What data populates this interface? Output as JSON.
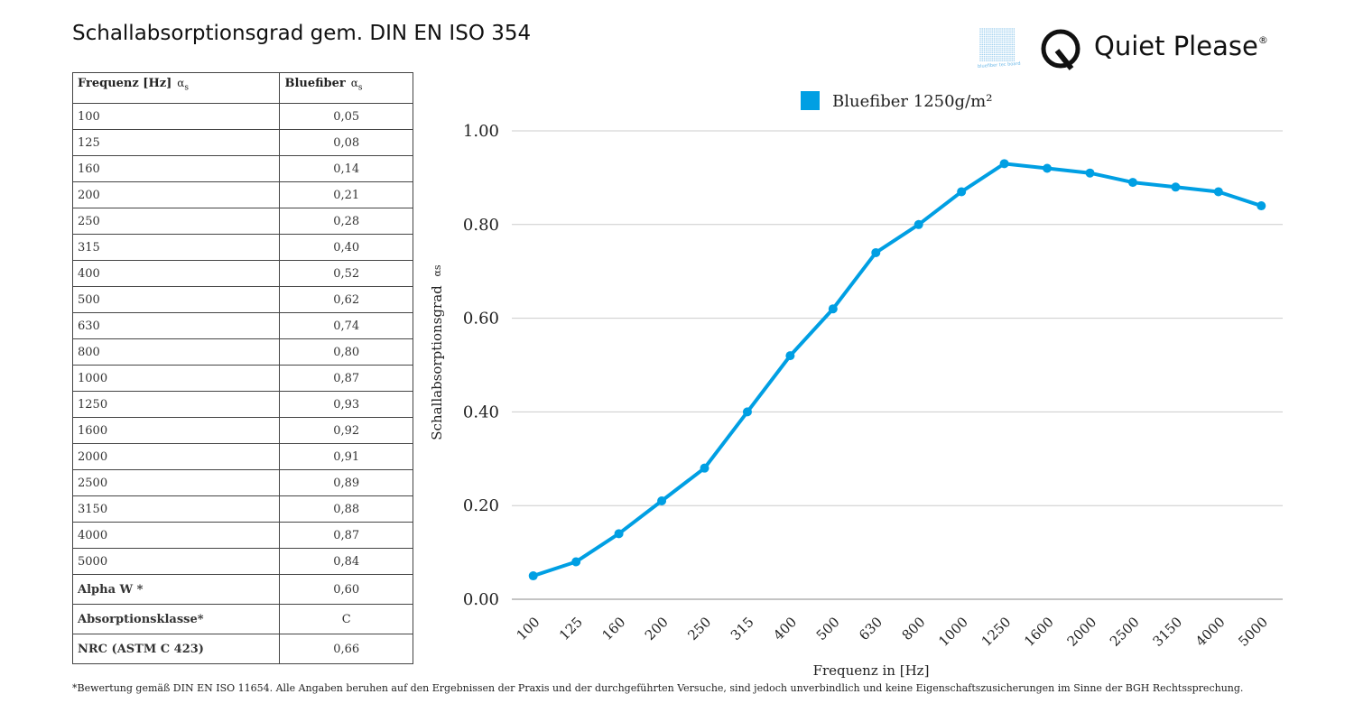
{
  "title": "Schallabsorptionsgrad gem. DIN EN ISO 354",
  "brand": {
    "name": "Quiet Please",
    "mark": "®",
    "sub_logo_text": "bluefiber tec board"
  },
  "table": {
    "headers": {
      "col1": "Frequenz [Hz]",
      "col2": "Bluefiber",
      "alpha": "α",
      "alpha_sub": "s"
    },
    "rows": [
      [
        "100",
        "0,05"
      ],
      [
        "125",
        "0,08"
      ],
      [
        "160",
        "0,14"
      ],
      [
        "200",
        "0,21"
      ],
      [
        "250",
        "0,28"
      ],
      [
        "315",
        "0,40"
      ],
      [
        "400",
        "0,52"
      ],
      [
        "500",
        "0,62"
      ],
      [
        "630",
        "0,74"
      ],
      [
        "800",
        "0,80"
      ],
      [
        "1000",
        "0,87"
      ],
      [
        "1250",
        "0,93"
      ],
      [
        "1600",
        "0,92"
      ],
      [
        "2000",
        "0,91"
      ],
      [
        "2500",
        "0,89"
      ],
      [
        "3150",
        "0,88"
      ],
      [
        "4000",
        "0,87"
      ],
      [
        "5000",
        "0,84"
      ]
    ],
    "extra_rows": [
      [
        "Alpha W *",
        "0,60"
      ],
      [
        "Absorptionsklasse*",
        "C"
      ],
      [
        "NRC (ASTM C 423)",
        "0,66"
      ]
    ]
  },
  "chart_data": {
    "type": "line",
    "categories": [
      "100",
      "125",
      "160",
      "200",
      "250",
      "315",
      "400",
      "500",
      "630",
      "800",
      "1000",
      "1250",
      "1600",
      "2000",
      "2500",
      "3150",
      "4000",
      "5000"
    ],
    "series": [
      {
        "name": "Bluefiber 1250g/m²",
        "color": "#009fe3",
        "values": [
          0.05,
          0.08,
          0.14,
          0.21,
          0.28,
          0.4,
          0.52,
          0.62,
          0.74,
          0.8,
          0.87,
          0.93,
          0.92,
          0.91,
          0.89,
          0.88,
          0.87,
          0.84
        ]
      }
    ],
    "xlabel": "Frequenz in [Hz]",
    "ylabel": "Schallabsorptionsgrad",
    "ylabel_symbol": "αs",
    "ylim": [
      0,
      1
    ],
    "yticks": [
      "0.00",
      "0.20",
      "0.40",
      "0.60",
      "0.80",
      "1.00"
    ],
    "grid": true,
    "legend": "top-center"
  },
  "footnote": "*Bewertung gemäß DIN EN ISO 11654.  Alle Angaben beruhen auf den Ergebnissen der Praxis und der durchgeführten Versuche, sind jedoch unverbindlich und keine Eigenschaftszusicherungen im Sinne der BGH Rechtssprechung."
}
